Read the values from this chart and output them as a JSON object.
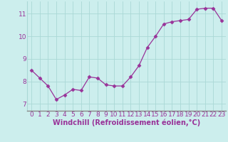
{
  "x": [
    0,
    1,
    2,
    3,
    4,
    5,
    6,
    7,
    8,
    9,
    10,
    11,
    12,
    13,
    14,
    15,
    16,
    17,
    18,
    19,
    20,
    21,
    22,
    23
  ],
  "y": [
    8.5,
    8.15,
    7.8,
    7.2,
    7.4,
    7.65,
    7.6,
    8.2,
    8.15,
    7.85,
    7.8,
    7.8,
    8.2,
    8.7,
    9.5,
    10.0,
    10.55,
    10.65,
    10.7,
    10.75,
    11.2,
    11.25,
    11.25,
    10.7
  ],
  "line_color": "#993399",
  "marker": "D",
  "markersize": 2.5,
  "linewidth": 0.9,
  "bg_color": "#cceeed",
  "grid_color": "#aad8d6",
  "ylabel_ticks": [
    7,
    8,
    9,
    10,
    11
  ],
  "xlabel": "Windchill (Refroidissement éolien,°C)",
  "xlabel_fontsize": 7,
  "tick_fontsize": 6.5,
  "ylim": [
    6.7,
    11.55
  ],
  "xlim": [
    -0.5,
    23.5
  ]
}
